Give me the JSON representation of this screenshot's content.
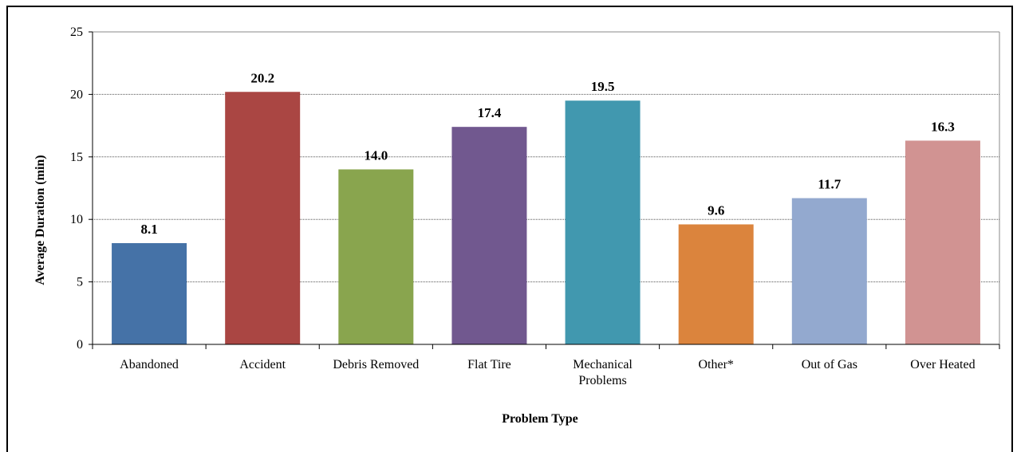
{
  "chart_data": {
    "type": "bar",
    "title": "",
    "xlabel": "Problem Type",
    "ylabel": "Average Duration (min)",
    "ylim": [
      0,
      25
    ],
    "yticks": [
      0,
      5,
      10,
      15,
      20,
      25
    ],
    "grid": "horizontal dotted",
    "legend": "none",
    "categories": [
      [
        "Abandoned"
      ],
      [
        "Accident"
      ],
      [
        "Debris Removed"
      ],
      [
        "Flat Tire"
      ],
      [
        "Mechanical",
        "Problems"
      ],
      [
        "Other*"
      ],
      [
        "Out of Gas"
      ],
      [
        "Over Heated"
      ]
    ],
    "values": [
      8.1,
      20.2,
      14.0,
      17.4,
      19.5,
      9.6,
      11.7,
      16.3
    ],
    "value_labels": [
      "8.1",
      "20.2",
      "14.0",
      "17.4",
      "19.5",
      "9.6",
      "11.7",
      "16.3"
    ],
    "colors": [
      "#4572A7",
      "#AA4643",
      "#89A54E",
      "#71588F",
      "#4198AF",
      "#DB843D",
      "#93A9CF",
      "#D19392"
    ]
  }
}
